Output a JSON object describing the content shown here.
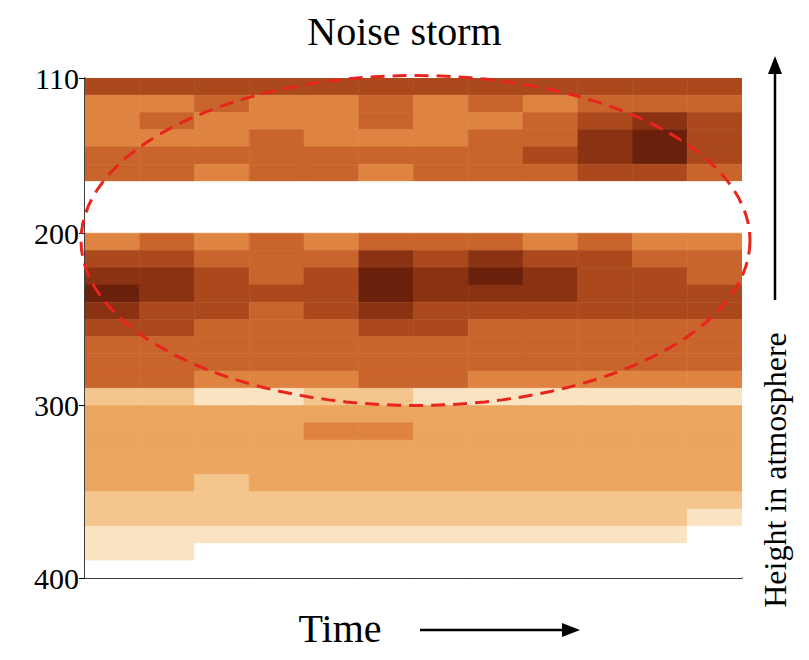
{
  "chart_data": {
    "type": "heatmap",
    "title": "Noise storm",
    "xlabel": "Time",
    "annotations": [
      "Height in atmosphere"
    ],
    "xlim": [
      0,
      12
    ],
    "ylim": [
      110,
      400
    ],
    "yticks": [
      110,
      200,
      300,
      400
    ],
    "tick_labels": "y",
    "grid": false,
    "x_bins": [
      0,
      1,
      2,
      3,
      4,
      5,
      6,
      7,
      8,
      9,
      10,
      11,
      12
    ],
    "y_bins": [
      110,
      120,
      130,
      140,
      150,
      160,
      170,
      180,
      190,
      200,
      210,
      220,
      230,
      240,
      250,
      260,
      270,
      280,
      290,
      300,
      310,
      320,
      330,
      340,
      350,
      360,
      370,
      380,
      390,
      400
    ],
    "cells": [
      [
        6,
        6,
        6,
        6,
        6,
        6,
        6,
        6,
        6,
        6,
        6,
        6
      ],
      [
        4,
        4,
        5,
        4,
        4,
        5,
        4,
        5,
        4,
        5,
        5,
        5
      ],
      [
        4,
        5,
        4,
        4,
        4,
        5,
        4,
        4,
        5,
        6,
        7,
        6
      ],
      [
        4,
        4,
        4,
        5,
        4,
        4,
        4,
        5,
        5,
        7,
        8,
        6
      ],
      [
        5,
        5,
        5,
        5,
        5,
        5,
        5,
        5,
        6,
        7,
        8,
        6
      ],
      [
        5,
        5,
        4,
        5,
        5,
        4,
        5,
        5,
        5,
        6,
        6,
        5
      ],
      [
        0,
        0,
        0,
        0,
        0,
        0,
        0,
        0,
        0,
        0,
        0,
        0
      ],
      [
        0,
        0,
        0,
        0,
        0,
        0,
        0,
        0,
        0,
        0,
        0,
        0
      ],
      [
        0,
        0,
        0,
        0,
        0,
        0,
        0,
        0,
        0,
        0,
        0,
        0
      ],
      [
        4,
        5,
        4,
        5,
        4,
        5,
        5,
        5,
        4,
        5,
        4,
        4
      ],
      [
        6,
        6,
        5,
        5,
        5,
        7,
        6,
        7,
        6,
        6,
        5,
        5
      ],
      [
        7,
        7,
        6,
        5,
        6,
        8,
        7,
        8,
        7,
        6,
        6,
        5
      ],
      [
        8,
        7,
        6,
        6,
        6,
        8,
        7,
        7,
        7,
        6,
        6,
        6
      ],
      [
        7,
        6,
        6,
        5,
        6,
        7,
        6,
        6,
        6,
        6,
        6,
        6
      ],
      [
        6,
        6,
        5,
        5,
        5,
        6,
        6,
        5,
        5,
        5,
        5,
        5
      ],
      [
        5,
        5,
        5,
        5,
        5,
        5,
        5,
        5,
        5,
        5,
        5,
        5
      ],
      [
        5,
        5,
        5,
        5,
        5,
        5,
        5,
        5,
        5,
        5,
        5,
        5
      ],
      [
        5,
        5,
        4,
        4,
        4,
        5,
        5,
        4,
        4,
        4,
        4,
        4
      ],
      [
        2,
        2,
        1,
        1,
        2,
        2,
        1,
        1,
        1,
        1,
        1,
        1
      ],
      [
        3,
        3,
        3,
        3,
        3,
        3,
        3,
        3,
        3,
        3,
        3,
        3
      ],
      [
        3,
        3,
        3,
        3,
        4,
        4,
        3,
        3,
        3,
        3,
        3,
        3
      ],
      [
        3,
        3,
        3,
        3,
        3,
        3,
        3,
        3,
        3,
        3,
        3,
        3
      ],
      [
        3,
        3,
        3,
        3,
        3,
        3,
        3,
        3,
        3,
        3,
        3,
        3
      ],
      [
        3,
        3,
        2,
        3,
        3,
        3,
        3,
        3,
        3,
        3,
        3,
        3
      ],
      [
        2,
        2,
        2,
        2,
        2,
        2,
        2,
        2,
        2,
        2,
        2,
        2
      ],
      [
        2,
        2,
        2,
        2,
        2,
        2,
        2,
        2,
        2,
        2,
        2,
        1
      ],
      [
        1,
        1,
        1,
        1,
        1,
        1,
        1,
        1,
        1,
        1,
        1,
        0
      ],
      [
        1,
        1,
        0,
        0,
        0,
        0,
        0,
        0,
        0,
        0,
        0,
        0
      ],
      [
        0,
        0,
        0,
        0,
        0,
        0,
        0,
        0,
        0,
        0,
        0,
        0
      ]
    ]
  }
}
